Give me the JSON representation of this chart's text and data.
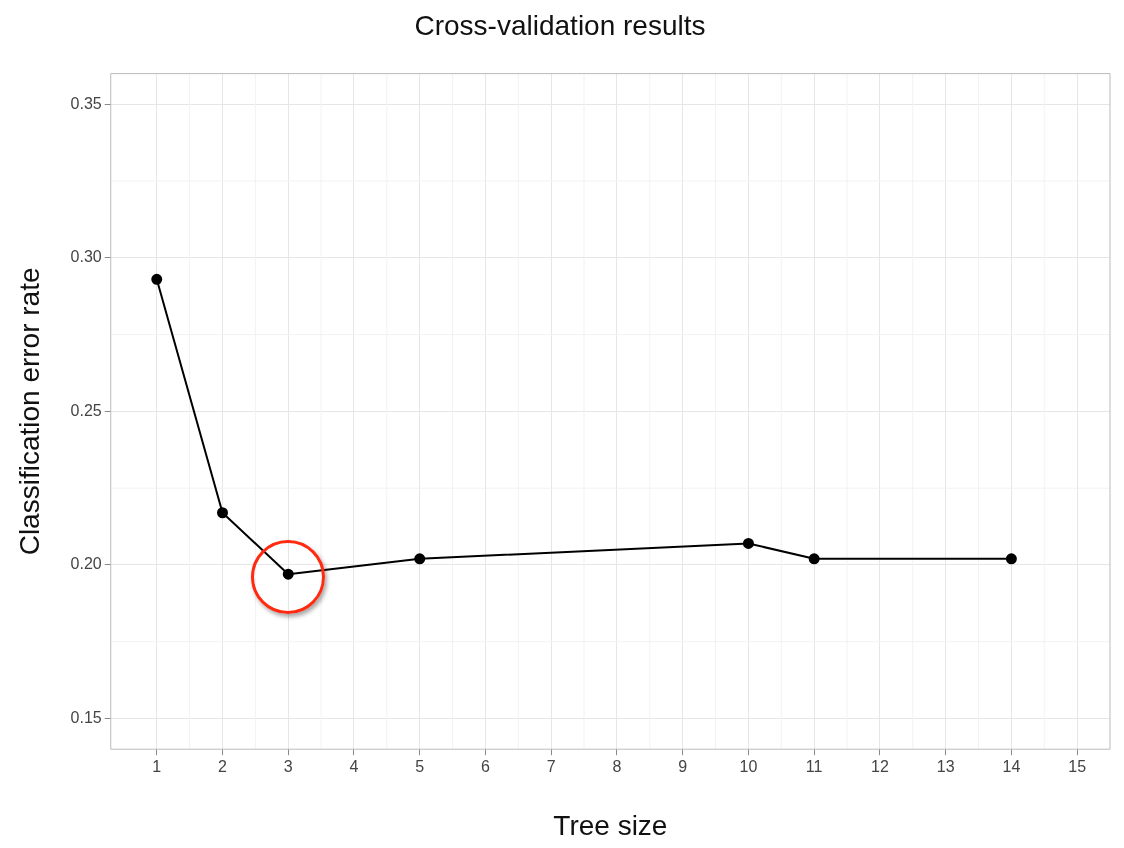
{
  "chart_data": {
    "type": "line",
    "title": "Cross-validation results",
    "xlabel": "Tree size",
    "ylabel": "Classification error rate",
    "x": [
      1,
      2,
      3,
      5,
      10,
      11,
      14
    ],
    "series": [
      {
        "color": "#000000",
        "values": [
          0.293,
          0.217,
          0.197,
          0.202,
          0.207,
          0.202,
          0.202
        ]
      }
    ],
    "xlim": [
      0.3,
      15.5
    ],
    "xticks": [
      1,
      2,
      3,
      4,
      5,
      6,
      7,
      8,
      9,
      10,
      11,
      12,
      13,
      14,
      15
    ],
    "ylim": [
      0.14,
      0.36
    ],
    "yticks": [
      0.15,
      {
        "value": 0.2,
        "label": "0.20"
      },
      0.25,
      {
        "value": 0.3,
        "label": "0.30"
      },
      0.35
    ],
    "grid": true,
    "legend": false,
    "marker": "circle",
    "line_style": "solid"
  }
}
